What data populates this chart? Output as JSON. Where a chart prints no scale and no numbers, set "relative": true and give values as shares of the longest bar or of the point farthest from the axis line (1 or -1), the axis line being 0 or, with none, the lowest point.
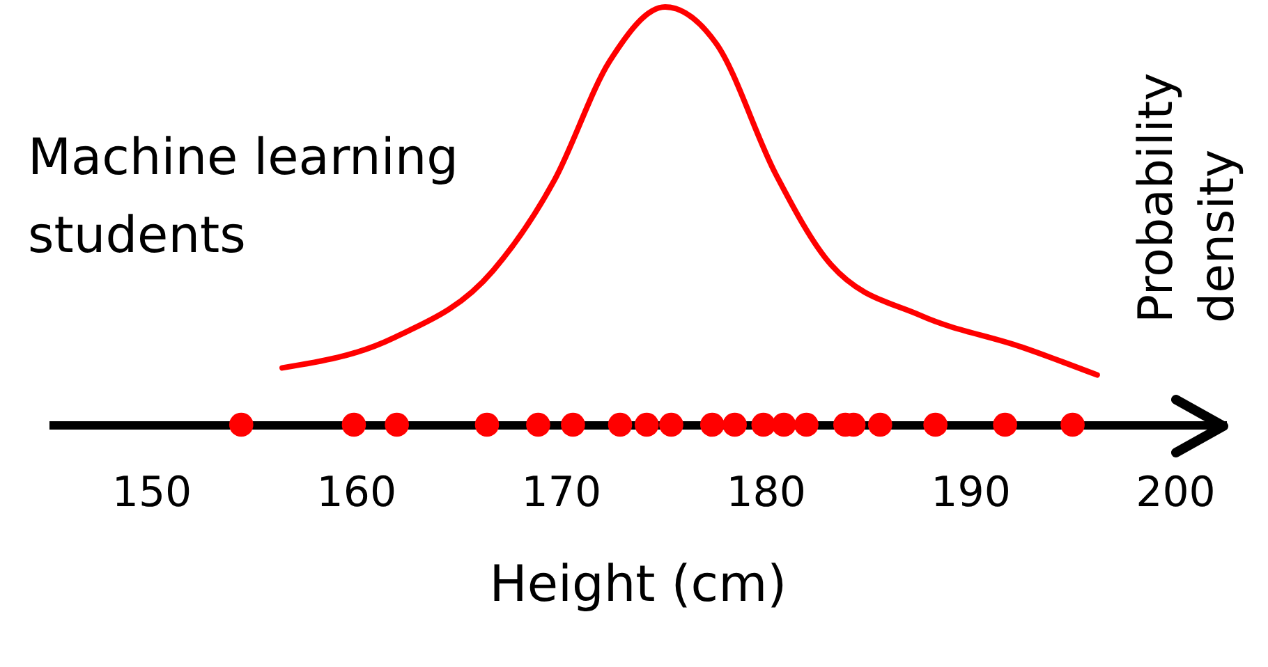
{
  "chart_data": {
    "type": "scatter",
    "xlabel": "Height (cm)",
    "ylabel": "Probability density",
    "relative": true,
    "xlim": [
      145,
      202.5
    ],
    "xticks": [
      150,
      160,
      170,
      180,
      190,
      200
    ],
    "grid": false,
    "series": [
      {
        "name": "Machine learning students",
        "type": "line",
        "color": "#ff0000",
        "x": [
          156.4,
          161.8,
          166.7,
          169.7,
          172.4,
          175.1,
          177.6,
          180.5,
          183.2,
          187.6,
          192.5,
          196.2
        ],
        "values": [
          0.136,
          0.207,
          0.369,
          0.586,
          0.871,
          1.0,
          0.912,
          0.6,
          0.383,
          0.261,
          0.186,
          0.119
        ]
      },
      {
        "marker": "circle",
        "color": "#ff0000",
        "x": [
          154.4,
          159.9,
          162.0,
          166.4,
          168.9,
          170.6,
          172.9,
          174.2,
          175.4,
          177.4,
          178.5,
          179.9,
          180.9,
          182.0,
          183.9,
          184.3,
          185.6,
          188.3,
          191.7,
          195.0
        ],
        "values": [
          0,
          0,
          0,
          0,
          0,
          0,
          0,
          0,
          0,
          0,
          0,
          0,
          0,
          0,
          0,
          0,
          0,
          0,
          0,
          0
        ]
      }
    ]
  }
}
